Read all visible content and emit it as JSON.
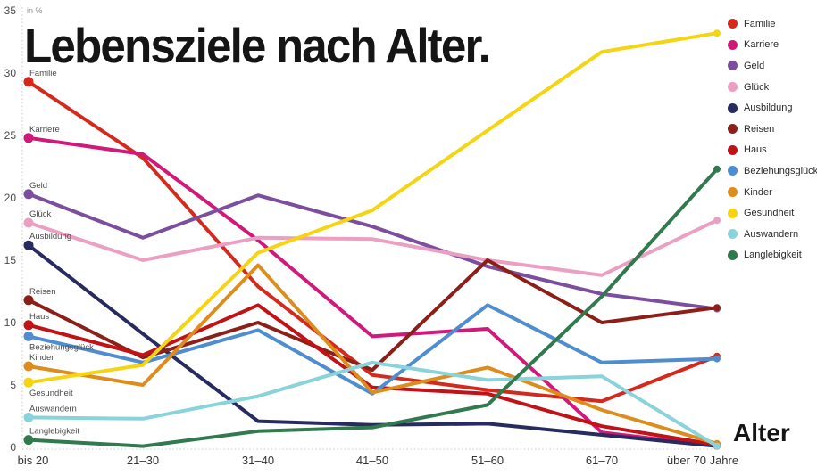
{
  "title": "Lebensziele nach Alter.",
  "y_axis": {
    "unit": "in %",
    "ticks": [
      0,
      5,
      10,
      15,
      20,
      25,
      30,
      35
    ]
  },
  "x_axis": {
    "title": "Alter",
    "labels": [
      "bis 20",
      "21–30",
      "31–40",
      "41–50",
      "51–60",
      "61–70",
      "über 70 Jahre"
    ]
  },
  "chart_data": {
    "type": "line",
    "categories": [
      "bis 20",
      "21–30",
      "31–40",
      "41–50",
      "51–60",
      "61–70",
      "über 70 Jahre"
    ],
    "ylim": [
      0,
      35
    ],
    "grid": false,
    "legend_position": "top-right",
    "ylabel": "in %",
    "xlabel": "Alter",
    "series": [
      {
        "name": "Familie",
        "color": "#d42a1d",
        "label_side": "above",
        "values": [
          29.3,
          23.2,
          12.9,
          5.8,
          4.6,
          3.7,
          7.3
        ]
      },
      {
        "name": "Karriere",
        "color": "#d1197b",
        "label_side": "above",
        "values": [
          24.8,
          23.5,
          16.6,
          8.9,
          9.5,
          1.2,
          0.1
        ]
      },
      {
        "name": "Geld",
        "color": "#7b4f9d",
        "label_side": "above",
        "values": [
          20.3,
          16.8,
          20.2,
          17.7,
          14.5,
          12.3,
          11.1
        ]
      },
      {
        "name": "Glück",
        "color": "#eb9fc3",
        "label_side": "above",
        "values": [
          18.0,
          15.0,
          16.8,
          16.7,
          15.0,
          13.8,
          18.2
        ]
      },
      {
        "name": "Ausbildung",
        "color": "#272b5f",
        "label_side": "above",
        "values": [
          16.2,
          9.1,
          2.1,
          1.8,
          1.9,
          1.0,
          0.1
        ]
      },
      {
        "name": "Reisen",
        "color": "#8c1f17",
        "label_side": "above",
        "values": [
          11.8,
          7.2,
          10.0,
          6.2,
          15.0,
          10.0,
          11.2
        ]
      },
      {
        "name": "Haus",
        "color": "#c01217",
        "label_side": "above",
        "values": [
          9.8,
          7.4,
          11.4,
          4.8,
          4.3,
          1.7,
          0.2
        ]
      },
      {
        "name": "Beziehungsglück",
        "color": "#4e8ed0",
        "label_side": "below",
        "values": [
          8.9,
          6.8,
          9.4,
          4.3,
          11.4,
          6.8,
          7.1
        ]
      },
      {
        "name": "Kinder",
        "color": "#dd8d1e",
        "label_side": "above",
        "values": [
          6.5,
          5.0,
          14.6,
          4.4,
          6.4,
          3.0,
          0.3
        ]
      },
      {
        "name": "Gesundheit",
        "color": "#f5d411",
        "label_side": "below",
        "values": [
          5.2,
          6.6,
          15.6,
          19.0,
          25.4,
          31.7,
          33.2
        ]
      },
      {
        "name": "Auswandern",
        "color": "#88d4da",
        "label_side": "above",
        "values": [
          2.4,
          2.3,
          4.1,
          6.8,
          5.4,
          5.7,
          0.1
        ]
      },
      {
        "name": "Langlebigkeit",
        "color": "#31794e",
        "label_side": "above",
        "values": [
          0.6,
          0.1,
          1.3,
          1.6,
          3.4,
          12.1,
          22.3
        ]
      }
    ]
  }
}
